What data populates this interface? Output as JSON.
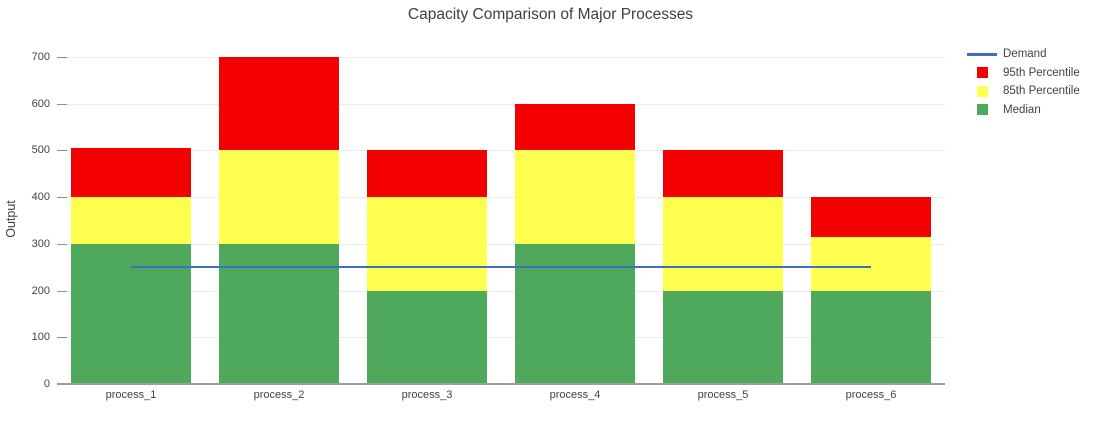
{
  "chart_data": {
    "type": "bar",
    "subtype": "stacked-percentile-bands-with-line-overlay",
    "title": "Capacity Comparison of Major Processes",
    "xlabel": "",
    "ylabel": "Output",
    "categories": [
      "process_1",
      "process_2",
      "process_3",
      "process_4",
      "process_5",
      "process_6"
    ],
    "values_are": "absolute y-level of the top of each colored band",
    "series": [
      {
        "name": "Median",
        "color": "#4fa95c",
        "marker": "square",
        "values": [
          300,
          300,
          200,
          300,
          200,
          200
        ]
      },
      {
        "name": "85th Percentile",
        "color": "#ffff4f",
        "marker": "square",
        "values": [
          400,
          500,
          400,
          500,
          400,
          315
        ]
      },
      {
        "name": "95th Percentile",
        "color": "#f40000",
        "marker": "square",
        "values": [
          505,
          700,
          500,
          600,
          500,
          400
        ]
      }
    ],
    "line_series": {
      "name": "Demand",
      "color": "#3e70be",
      "value": 250,
      "spans": "center of first bar to center of last bar"
    },
    "ylim": [
      0,
      700
    ],
    "yticks": [
      0,
      100,
      200,
      300,
      400,
      500,
      600,
      700
    ],
    "grid": "horizontal",
    "legend": {
      "position": "top-right",
      "entries": [
        {
          "label": "Demand",
          "marker": "line",
          "color": "#3e70be"
        },
        {
          "label": "95th Percentile",
          "marker": "square",
          "color": "#f40000"
        },
        {
          "label": "85th Percentile",
          "marker": "square",
          "color": "#ffff4f"
        },
        {
          "label": "Median",
          "marker": "square",
          "color": "#4fa95c"
        }
      ]
    },
    "style_colors": {
      "gridline": "#ececec",
      "axis_line": "#9e9e9e",
      "text": "#424242"
    }
  }
}
